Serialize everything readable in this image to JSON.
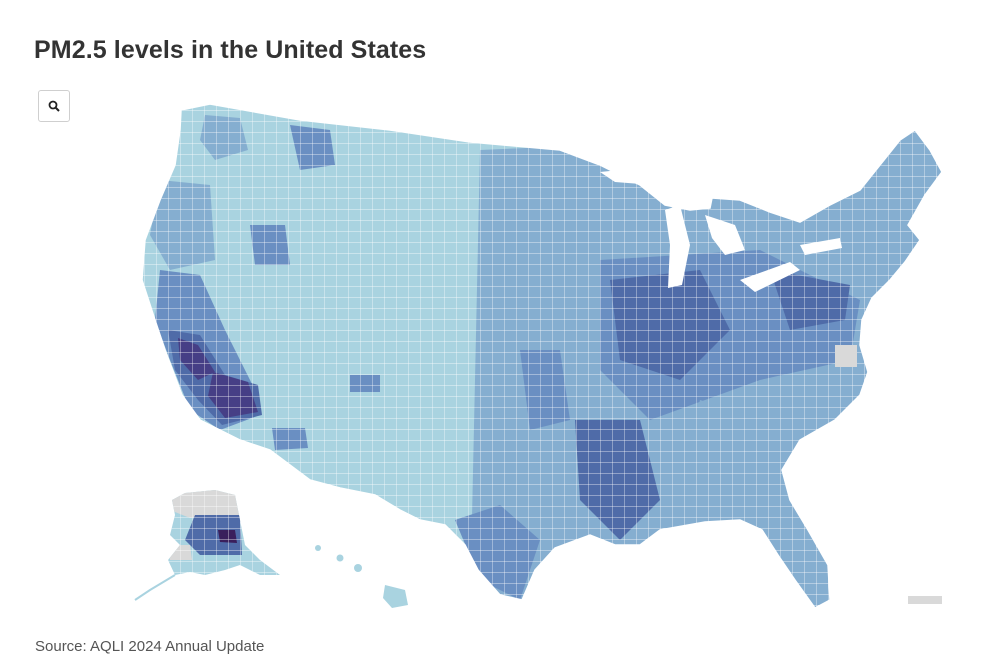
{
  "title": "PM2.5 levels in the United States",
  "source": "Source: AQLI 2024 Annual Update",
  "controls": {
    "search_icon": "search-icon"
  },
  "colors": {
    "level1": "#a9d3e0",
    "level2": "#85aed0",
    "level3": "#6a8fc2",
    "level4": "#4f6ba8",
    "level5": "#463f86",
    "level6": "#3a1f5c",
    "no_data": "#d9d9d9",
    "county_border": "#ffffff"
  },
  "map": {
    "regions": [
      "contiguous-us",
      "alaska",
      "hawaii",
      "puerto-rico"
    ]
  }
}
